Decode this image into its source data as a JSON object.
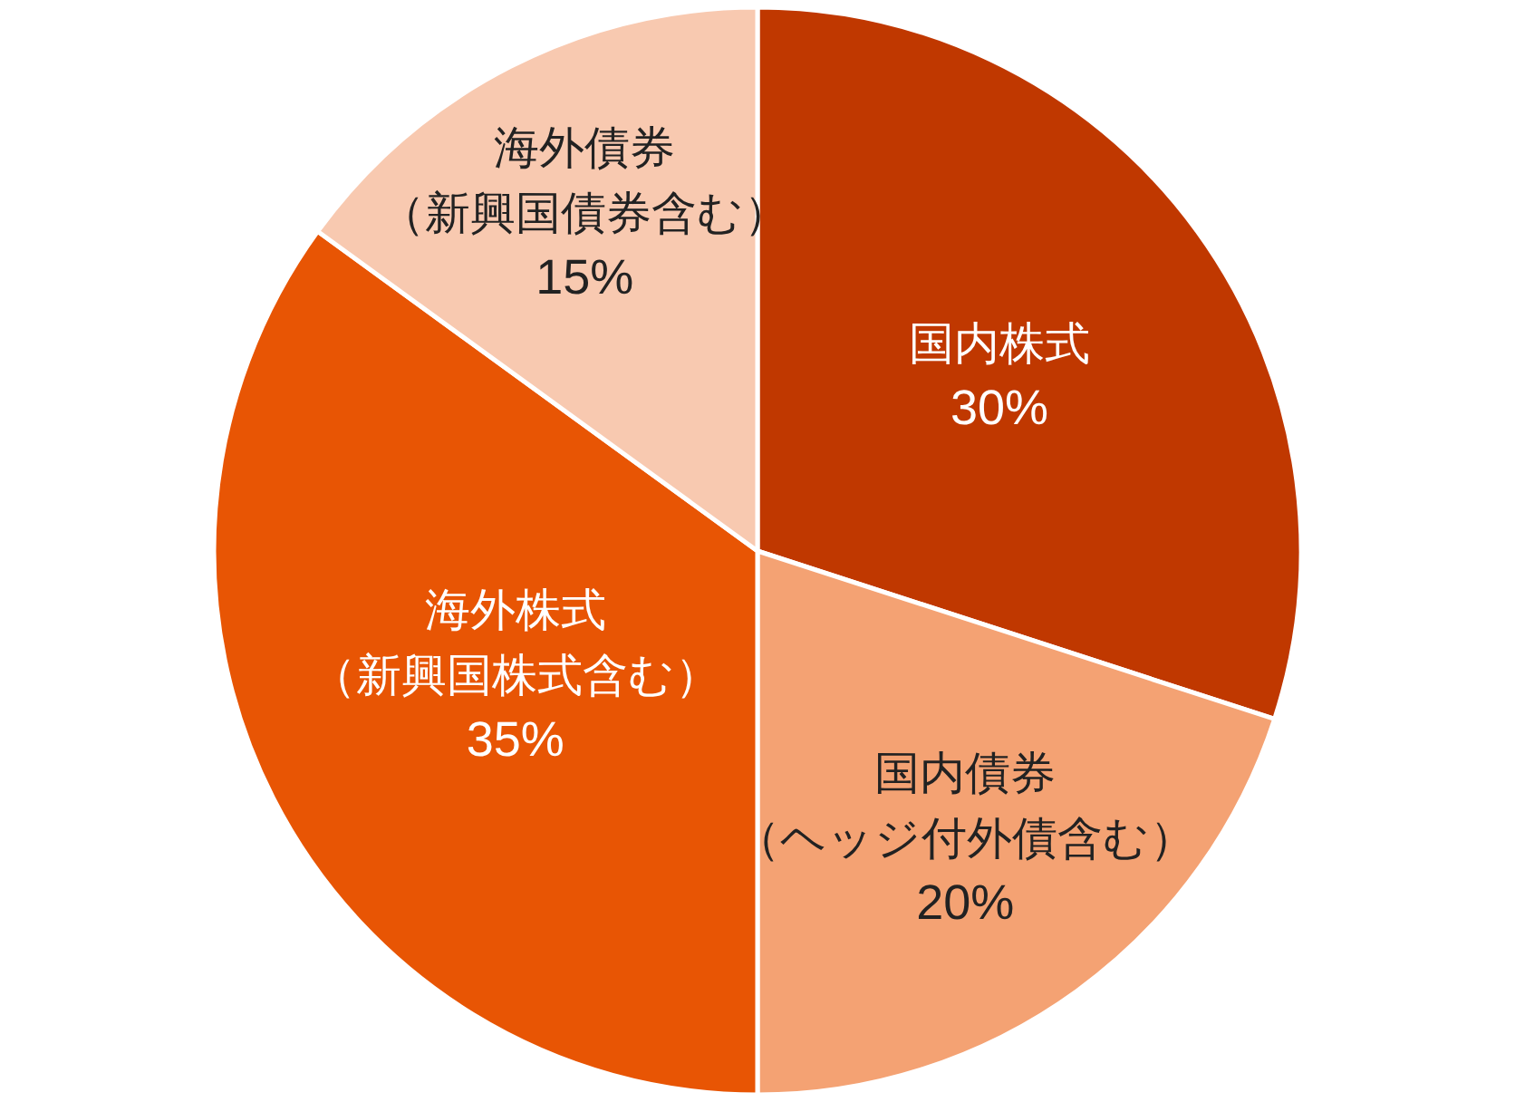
{
  "chart_data": {
    "type": "pie",
    "categories": [
      "国内株式",
      "国内債券（ヘッジ付外債含む）",
      "海外株式（新興国株式含む）",
      "海外債券（新興国債券含む）"
    ],
    "values": [
      30,
      20,
      35,
      15
    ],
    "colors": [
      "#c03800",
      "#f4a273",
      "#e85504",
      "#f8c9b0"
    ],
    "value_labels": [
      "30%",
      "20%",
      "35%",
      "15%"
    ]
  }
}
